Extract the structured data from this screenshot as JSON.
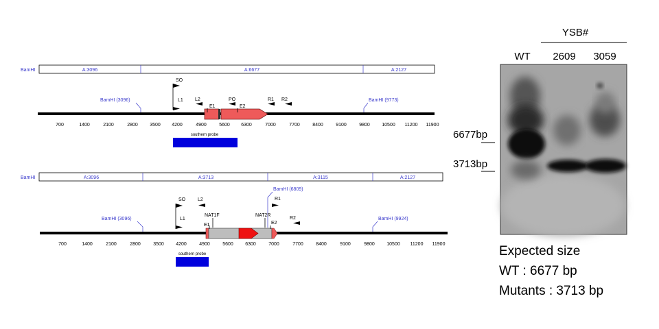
{
  "colors": {
    "enzyme_blue": "#3b3bcc",
    "probe_blue": "#0000dd",
    "cassette_red": "#ee5a5a",
    "marker_red": "#ee1111",
    "cassette_gray": "#bdbdbd",
    "tick_black": "#000000"
  },
  "wt_map": {
    "restriction_label": "BamHI",
    "fragments": [
      "A:3096",
      "A:6677",
      "A:2127"
    ],
    "sites": [
      "BamHI (3096)",
      "BamHI (9773)"
    ],
    "primers": [
      "SO",
      "L1",
      "L2",
      "E1",
      "PO",
      "E2",
      "R1",
      "R2"
    ],
    "probe_label": "southern probe",
    "axis_ticks": [
      "700",
      "1400",
      "2100",
      "2800",
      "3500",
      "4200",
      "4900",
      "5600",
      "6300",
      "7000",
      "7700",
      "8400",
      "9100",
      "9800",
      "10500",
      "11200",
      "11900"
    ]
  },
  "mutant_map": {
    "restriction_label": "BamHI",
    "fragments": [
      "A:3096",
      "A:3713",
      "A:3115",
      "A:2127"
    ],
    "sites": [
      "BamHI (3096)",
      "BamHI (6809)",
      "BamHI (9924)"
    ],
    "primers": [
      "SO",
      "L2",
      "L1",
      "NAT1F",
      "E1",
      "R1",
      "NAT2R",
      "E2",
      "R2"
    ],
    "probe_label": "southern probe",
    "axis_ticks": [
      "700",
      "1400",
      "2100",
      "2800",
      "3500",
      "4200",
      "4900",
      "5600",
      "6300",
      "7000",
      "7700",
      "8400",
      "9100",
      "9800",
      "10500",
      "11200",
      "11900"
    ]
  },
  "blot": {
    "group_label": "YSB#",
    "lanes": [
      "WT",
      "2609",
      "3059"
    ],
    "markers": [
      "6677bp",
      "3713bp"
    ]
  },
  "expected": {
    "title": "Expected size",
    "wt": "WT : 6677 bp",
    "mutant": "Mutants : 3713 bp"
  }
}
